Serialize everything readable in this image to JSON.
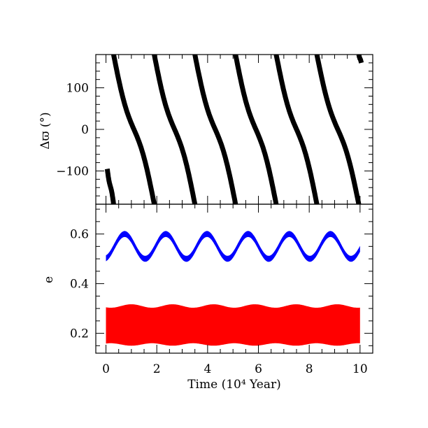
{
  "chart_data": [
    {
      "type": "scatter",
      "panel": "top",
      "ylabel": "Δϖ  (°)",
      "xlabel": "",
      "xlim": [
        -0.4,
        10.5
      ],
      "ylim": [
        -180,
        180
      ],
      "y_ticks_major": [
        -100,
        0,
        100
      ],
      "y_tick_labels": [
        "−100",
        "0",
        "100"
      ],
      "y_minor_step": 20,
      "x_ticks_major": [
        0,
        2,
        4,
        6,
        8,
        10
      ],
      "x_minor_step": 0.5,
      "series": [
        {
          "color": "#000000",
          "description_points": "Δϖ circulates: decreasing from 180 to -180 repeatedly",
          "segments": [
            {
              "x": [
                0.05,
                0.3
              ],
              "y": [
                -95,
                -180
              ]
            },
            {
              "x": [
                0.3,
                1.9
              ],
              "y": [
                180,
                -180
              ]
            },
            {
              "x": [
                1.9,
                3.5
              ],
              "y": [
                180,
                -180
              ]
            },
            {
              "x": [
                3.5,
                5.1
              ],
              "y": [
                180,
                -180
              ]
            },
            {
              "x": [
                5.1,
                6.7
              ],
              "y": [
                180,
                -180
              ]
            },
            {
              "x": [
                6.7,
                8.3
              ],
              "y": [
                180,
                -180
              ]
            },
            {
              "x": [
                8.3,
                9.95
              ],
              "y": [
                180,
                -180
              ]
            },
            {
              "x": [
                9.95,
                10.05
              ],
              "y": [
                180,
                160
              ]
            }
          ]
        }
      ],
      "grid": false
    },
    {
      "type": "area",
      "panel": "bottom",
      "ylabel": "e",
      "xlabel": "Time (10⁴ Year)",
      "xlim": [
        -0.4,
        10.5
      ],
      "ylim": [
        0.12,
        0.72
      ],
      "y_ticks_major": [
        0.2,
        0.4,
        0.6
      ],
      "y_tick_labels": [
        "0.2",
        "0.4",
        "0.6"
      ],
      "y_minor_step": 0.05,
      "x_ticks_major": [
        0,
        2,
        4,
        6,
        8,
        10
      ],
      "x_tick_labels": [
        "0",
        "2",
        "4",
        "6",
        "8",
        "10"
      ],
      "x_minor_step": 0.5,
      "series": [
        {
          "color": "#0000ff",
          "kind": "band",
          "x_range": [
            0,
            10
          ],
          "center_mean": 0.55,
          "center_amplitude": 0.05,
          "period": 1.62,
          "phase_start_value": 0.535,
          "band_half_width": 0.012
        },
        {
          "color": "#ff0000",
          "kind": "band",
          "x_range": [
            0,
            10
          ],
          "lower_mean": 0.155,
          "lower_amplitude": 0.005,
          "upper_mean": 0.31,
          "upper_amplitude": 0.007,
          "period": 1.62
        }
      ],
      "grid": false
    }
  ]
}
